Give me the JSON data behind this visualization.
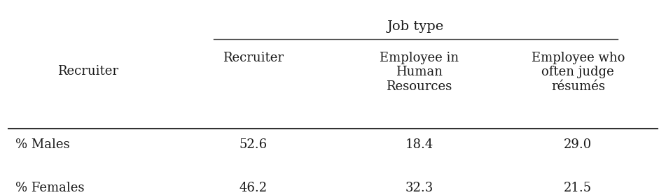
{
  "title_group": "Job type",
  "col_headers": [
    "Recruiter",
    "Employee in\nHuman\nResources",
    "Employee who\noften judge\nrésumés"
  ],
  "row_labels": [
    "% Males",
    "% Females"
  ],
  "values": [
    [
      "52.6",
      "18.4",
      "29.0"
    ],
    [
      "46.2",
      "32.3",
      "21.5"
    ]
  ],
  "bg_color": "#ffffff",
  "text_color": "#1a1a1a",
  "font_size": 13,
  "header_font_size": 13
}
